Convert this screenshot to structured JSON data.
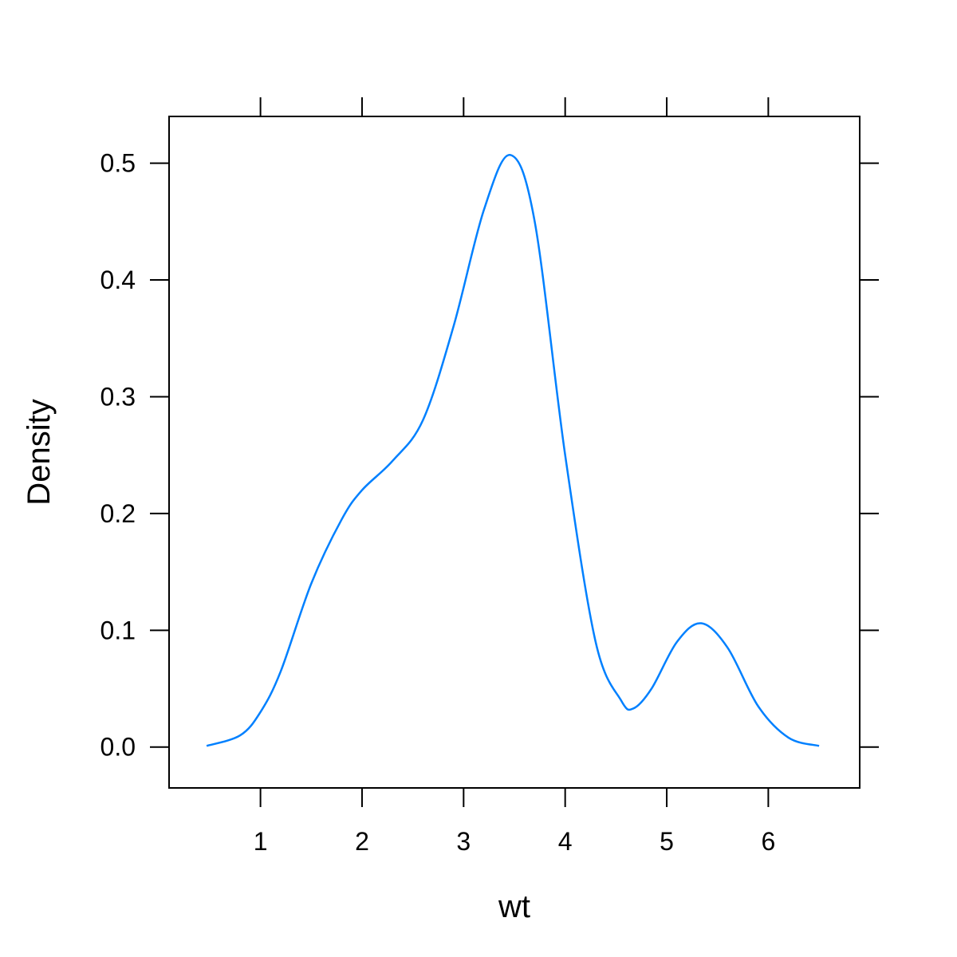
{
  "chart_data": {
    "type": "line",
    "title": "",
    "xlabel": "wt",
    "ylabel": "Density",
    "xlim": [
      0.1,
      6.9
    ],
    "ylim": [
      -0.035,
      0.54
    ],
    "x_ticks": [
      1,
      2,
      3,
      4,
      5,
      6
    ],
    "x_tick_labels": [
      "1",
      "2",
      "3",
      "4",
      "5",
      "6"
    ],
    "y_ticks": [
      0.0,
      0.1,
      0.2,
      0.3,
      0.4,
      0.5
    ],
    "y_tick_labels": [
      "0.0",
      "0.1",
      "0.2",
      "0.3",
      "0.4",
      "0.5"
    ],
    "grid": false,
    "line_color": "#0080ff",
    "series": [
      {
        "x": [
          0.47,
          0.8,
          1.0,
          1.2,
          1.5,
          1.8,
          2.0,
          2.3,
          2.6,
          2.9,
          3.2,
          3.46,
          3.7,
          4.0,
          4.3,
          4.55,
          4.67,
          4.85,
          5.1,
          5.34,
          5.6,
          5.9,
          6.2,
          6.5
        ],
        "y": [
          0.001,
          0.01,
          0.03,
          0.065,
          0.14,
          0.195,
          0.22,
          0.245,
          0.28,
          0.36,
          0.46,
          0.507,
          0.45,
          0.25,
          0.09,
          0.04,
          0.033,
          0.05,
          0.09,
          0.106,
          0.085,
          0.035,
          0.008,
          0.001
        ]
      }
    ]
  }
}
